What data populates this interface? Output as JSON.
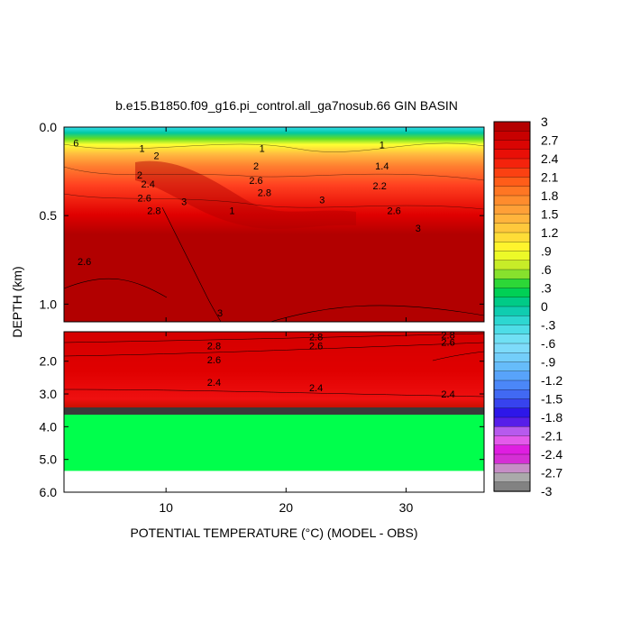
{
  "chart_data": {
    "type": "heatmap",
    "title": "b.e15.B1850.f09_g16.pi_control.all_ga7nosub.66 GIN BASIN",
    "xlabel": "POTENTIAL TEMPERATURE (°C) (MODEL - OBS)",
    "ylabel": "DEPTH (km)",
    "x_ticks": [
      "10",
      "20",
      "30"
    ],
    "x_tick_values": [
      10,
      20,
      30
    ],
    "xlim": [
      1.5,
      36.5
    ],
    "top_panel": {
      "ylim": [
        0.0,
        1.1
      ],
      "y_ticks": [
        "0.0",
        "0.5",
        "1.0"
      ],
      "y_tick_values": [
        0.0,
        0.5,
        1.0
      ]
    },
    "bottom_panel": {
      "ylim": [
        1.1,
        6.0
      ],
      "y_ticks": [
        "2.0",
        "3.0",
        "4.0",
        "5.0",
        "6.0"
      ],
      "y_tick_values": [
        2.0,
        3.0,
        4.0,
        5.0,
        6.0
      ],
      "fill_region": {
        "color": "#00ff4c",
        "depth_from": 3.6,
        "depth_to": 5.35
      }
    },
    "colorbar": {
      "labels": [
        "3",
        "2.7",
        "2.4",
        "2.1",
        "1.8",
        "1.5",
        "1.2",
        ".9",
        ".6",
        ".3",
        "0",
        "-.3",
        "-.6",
        "-.9",
        "-1.2",
        "-1.5",
        "-1.8",
        "-2.1",
        "-2.4",
        "-2.7",
        "-3"
      ],
      "values": [
        3,
        2.7,
        2.4,
        2.1,
        1.8,
        1.5,
        1.2,
        0.9,
        0.6,
        0.3,
        0,
        -0.3,
        -0.6,
        -0.9,
        -1.2,
        -1.5,
        -1.8,
        -2.1,
        -2.4,
        -2.7,
        -3
      ],
      "range": [
        -3,
        3
      ]
    },
    "contour_labels": [
      {
        "panel": "top",
        "x": 2.5,
        "y": 0.09,
        "text": "6"
      },
      {
        "panel": "top",
        "x": 8.0,
        "y": 0.12,
        "text": "1"
      },
      {
        "panel": "top",
        "x": 9.2,
        "y": 0.16,
        "text": "2"
      },
      {
        "panel": "top",
        "x": 7.8,
        "y": 0.27,
        "text": "2"
      },
      {
        "panel": "top",
        "x": 8.5,
        "y": 0.32,
        "text": "2.4"
      },
      {
        "panel": "top",
        "x": 8.2,
        "y": 0.4,
        "text": "2.6"
      },
      {
        "panel": "top",
        "x": 11.5,
        "y": 0.42,
        "text": "3"
      },
      {
        "panel": "top",
        "x": 9.0,
        "y": 0.47,
        "text": "2.8"
      },
      {
        "panel": "top",
        "x": 3.2,
        "y": 0.76,
        "text": "2.6"
      },
      {
        "panel": "top",
        "x": 15.5,
        "y": 0.47,
        "text": "1"
      },
      {
        "panel": "top",
        "x": 18.0,
        "y": 0.12,
        "text": "1"
      },
      {
        "panel": "top",
        "x": 17.5,
        "y": 0.22,
        "text": "2"
      },
      {
        "panel": "top",
        "x": 17.5,
        "y": 0.3,
        "text": "2.6"
      },
      {
        "panel": "top",
        "x": 18.2,
        "y": 0.37,
        "text": "2.8"
      },
      {
        "panel": "top",
        "x": 23.0,
        "y": 0.41,
        "text": "3"
      },
      {
        "panel": "top",
        "x": 28.0,
        "y": 0.1,
        "text": "1"
      },
      {
        "panel": "top",
        "x": 28.0,
        "y": 0.22,
        "text": "1.4"
      },
      {
        "panel": "top",
        "x": 27.8,
        "y": 0.33,
        "text": "2.2"
      },
      {
        "panel": "top",
        "x": 29.0,
        "y": 0.47,
        "text": "2.6"
      },
      {
        "panel": "top",
        "x": 31.0,
        "y": 0.57,
        "text": "3"
      },
      {
        "panel": "top",
        "x": 14.5,
        "y": 1.05,
        "text": "3"
      },
      {
        "panel": "bottom",
        "x": 14.0,
        "y": 1.53,
        "text": "2.8"
      },
      {
        "panel": "bottom",
        "x": 14.0,
        "y": 1.95,
        "text": "2.6"
      },
      {
        "panel": "bottom",
        "x": 14.0,
        "y": 2.64,
        "text": "2.4"
      },
      {
        "panel": "bottom",
        "x": 22.5,
        "y": 1.25,
        "text": "2.8"
      },
      {
        "panel": "bottom",
        "x": 22.5,
        "y": 1.53,
        "text": "2.6"
      },
      {
        "panel": "bottom",
        "x": 22.5,
        "y": 2.8,
        "text": "2.4"
      },
      {
        "panel": "bottom",
        "x": 33.5,
        "y": 1.2,
        "text": "2.8"
      },
      {
        "panel": "bottom",
        "x": 33.5,
        "y": 1.42,
        "text": "2.6"
      },
      {
        "panel": "bottom",
        "x": 33.5,
        "y": 3.0,
        "text": "2.4"
      }
    ]
  }
}
